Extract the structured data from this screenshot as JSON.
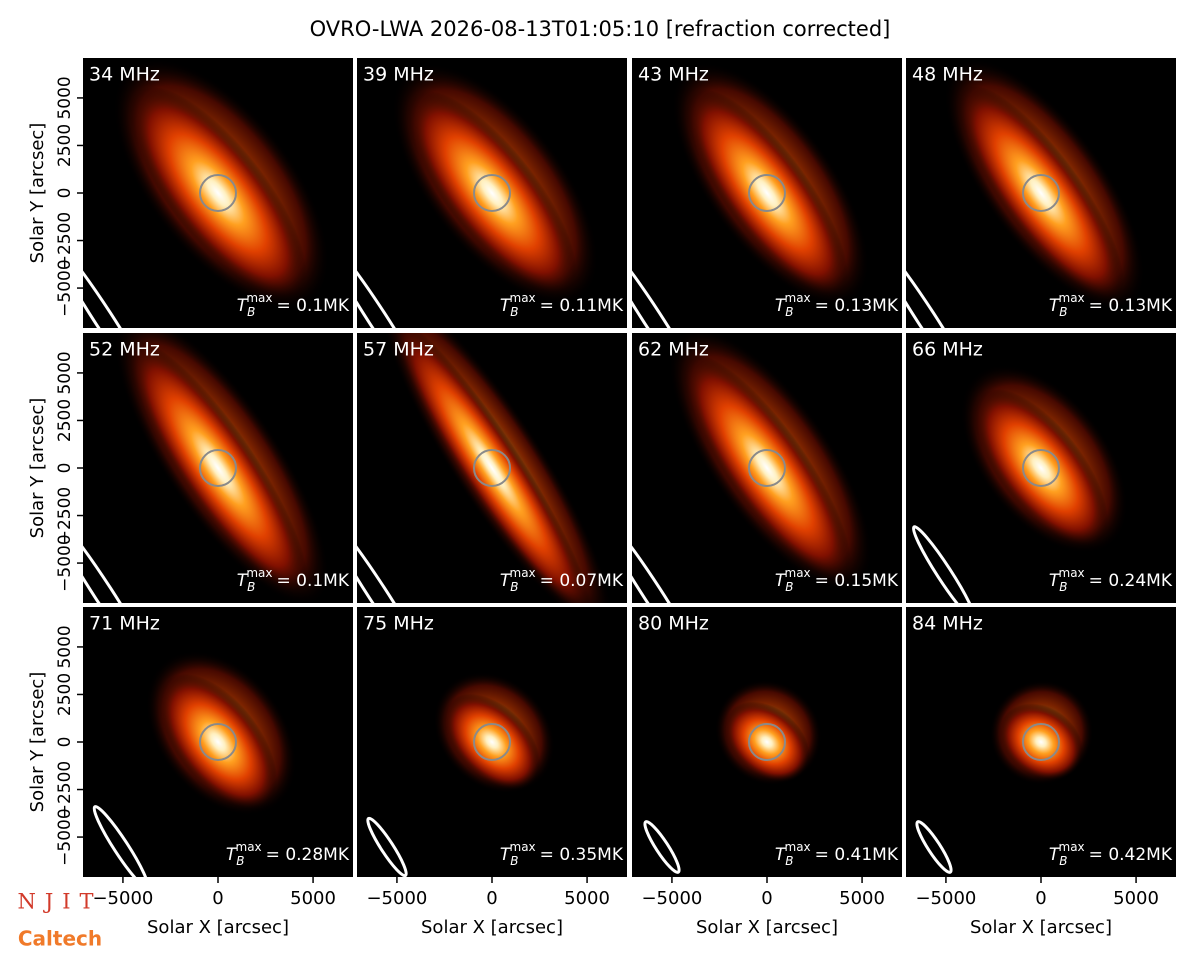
{
  "chart_data": {
    "type": "heatmap-grid",
    "title": "OVRO-LWA 2026-08-13T01:05:10 [refraction corrected]",
    "xlabel": "Solar X [arcsec]",
    "ylabel": "Solar Y [arcsec]",
    "xlim": [
      -7100,
      7100
    ],
    "ylim": [
      -7100,
      7100
    ],
    "xticks": [
      {
        "value": -5000,
        "label": "−5000"
      },
      0,
      5000
    ],
    "yticks": [
      {
        "value": -5000,
        "label": "−5000"
      },
      {
        "value": -2500,
        "label": "−2500"
      },
      0,
      2500,
      5000
    ],
    "tb_symbol": "T",
    "tb_sub": "B",
    "tb_sup": "max",
    "panels": [
      {
        "title": "34 MHz",
        "tb_label": "= 0.1MK"
      },
      {
        "title": "39 MHz",
        "tb_label": "= 0.11MK"
      },
      {
        "title": "43 MHz",
        "tb_label": "= 0.13MK"
      },
      {
        "title": "48 MHz",
        "tb_label": "= 0.13MK"
      },
      {
        "title": "52 MHz",
        "tb_label": "= 0.1MK"
      },
      {
        "title": "57 MHz",
        "tb_label": "= 0.07MK"
      },
      {
        "title": "62 MHz",
        "tb_label": "= 0.15MK"
      },
      {
        "title": "66 MHz",
        "tb_label": "= 0.24MK"
      },
      {
        "title": "71 MHz",
        "tb_label": "= 0.28MK"
      },
      {
        "title": "75 MHz",
        "tb_label": "= 0.35MK"
      },
      {
        "title": "80 MHz",
        "tb_label": "= 0.41MK"
      },
      {
        "title": "84 MHz",
        "tb_label": "= 0.42MK"
      }
    ]
  },
  "logos": {
    "njit": "NJIT",
    "caltech": "Caltech"
  }
}
